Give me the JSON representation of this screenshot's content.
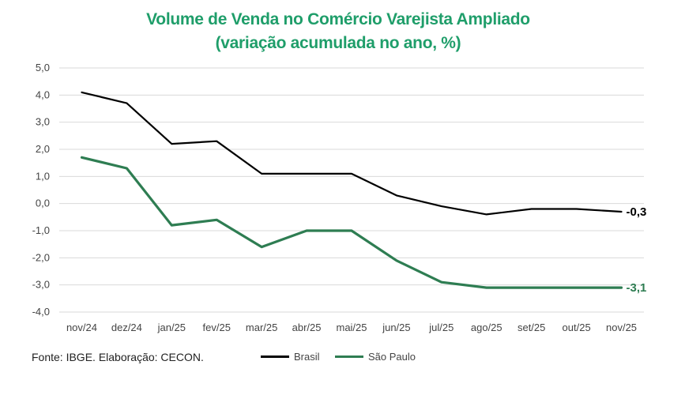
{
  "title_line1": "Volume de Venda no Comércio Varejista Ampliado",
  "title_line2": "(variação acumulada no ano, %)",
  "source": "Fonte: IBGE. Elaboração: CECON.",
  "colors": {
    "brasil": "#000000",
    "sao_paulo": "#2e7d52",
    "title": "#1f9e6a",
    "grid": "#d9d9d9"
  },
  "chart_data": {
    "type": "line",
    "title": "Volume de Venda no Comércio Varejista Ampliado (variação acumulada no ano, %)",
    "xlabel": "",
    "ylabel": "",
    "ylim": [
      -4.0,
      5.0
    ],
    "yticks": [
      "5,0",
      "4,0",
      "3,0",
      "2,0",
      "1,0",
      "0,0",
      "-1,0",
      "-2,0",
      "-3,0",
      "-4,0"
    ],
    "categories": [
      "nov/24",
      "dez/24",
      "jan/25",
      "fev/25",
      "mar/25",
      "abr/25",
      "mai/25",
      "jun/25",
      "jul/25",
      "ago/25",
      "set/25",
      "out/25",
      "nov/25"
    ],
    "series": [
      {
        "name": "Brasil",
        "color": "#000000",
        "values": [
          4.1,
          3.7,
          2.2,
          2.3,
          1.1,
          1.1,
          1.1,
          0.3,
          -0.1,
          -0.4,
          -0.2,
          -0.2,
          -0.3
        ],
        "end_label": "-0,3"
      },
      {
        "name": "São Paulo",
        "color": "#2e7d52",
        "values": [
          1.7,
          1.3,
          -0.8,
          -0.6,
          -1.6,
          -1.0,
          -1.0,
          -2.1,
          -2.9,
          -3.1,
          -3.1,
          -3.1,
          -3.1
        ],
        "end_label": "-3,1"
      }
    ],
    "grid": true,
    "legend_position": "bottom"
  }
}
